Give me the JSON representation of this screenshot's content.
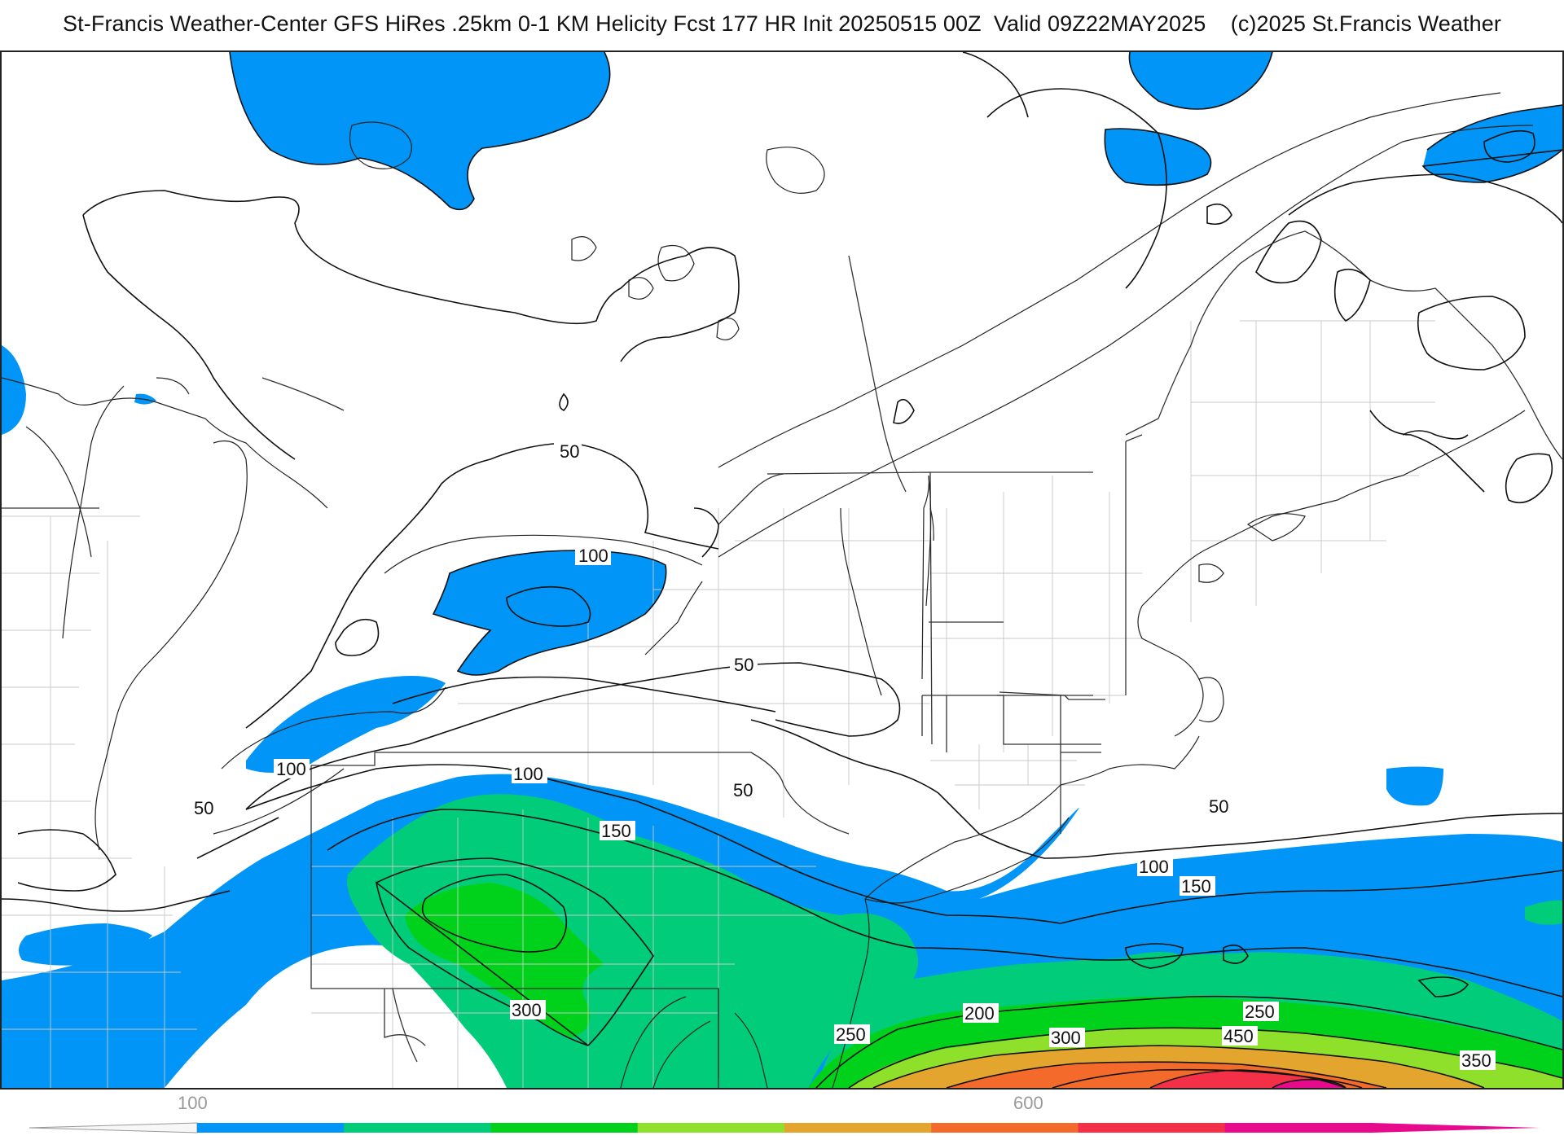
{
  "title": "St-Francis Weather-Center GFS HiRes .25km 0-1 KM Helicity Fcst 177 HR Init 20250515 00Z  Valid 09Z22MAY2025    (c)2025 St.Francis Weather",
  "map": {
    "variable": "0-1 KM Helicity",
    "contour_labels": [
      "50",
      "100",
      "50",
      "50",
      "100",
      "50",
      "150",
      "100",
      "50",
      "100",
      "150",
      "200",
      "300",
      "250",
      "300",
      "250",
      "450",
      "350"
    ],
    "fill_colors": {
      "band_100_150": "#0095f6",
      "band_150_200": "#00cc7a",
      "band_200_250": "#00d21c",
      "band_250_300": "#8ee02a",
      "band_300_350": "#e3a52d",
      "band_350_400": "#f46a2a",
      "band_400_450": "#f33048",
      "band_450_plus": "#e70a8d"
    }
  },
  "legend": {
    "tick_labels": [
      "100",
      "600"
    ],
    "colors": [
      "#0095f6",
      "#00cc7a",
      "#00d21c",
      "#8ee02a",
      "#e3a52d",
      "#f46a2a",
      "#f33048",
      "#e70a8d"
    ]
  }
}
